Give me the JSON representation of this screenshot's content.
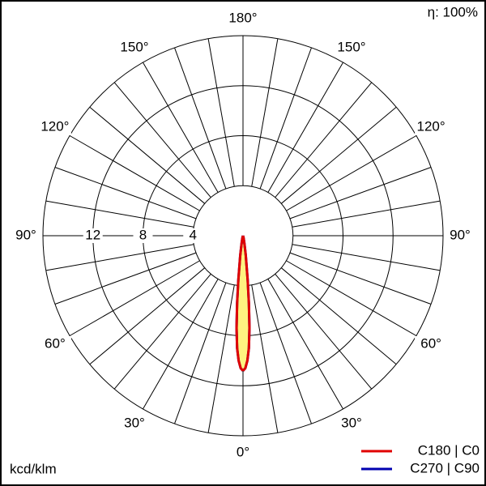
{
  "chart_data": {
    "type": "polar",
    "efficiency": "η: 100%",
    "unit": "kcd/klm",
    "rlim": [
      0,
      16
    ],
    "rticks": [
      4,
      8,
      12
    ],
    "grid_step": 10,
    "angle_ticks": [
      {
        "value": 0,
        "label": "0°"
      },
      {
        "value": 30,
        "label": "30°"
      },
      {
        "value": 60,
        "label": "60°"
      },
      {
        "value": 90,
        "label": "90°"
      },
      {
        "value": 120,
        "label": "120°"
      },
      {
        "value": 150,
        "label": "150°"
      },
      {
        "value": 180,
        "label": "180°"
      }
    ],
    "fill_color": "#fff380",
    "gamma": [
      0,
      1,
      2,
      3,
      4,
      5,
      6,
      8,
      10,
      15,
      20,
      90,
      180
    ],
    "series": [
      {
        "name": "C270 | C90",
        "color": "#0000b0",
        "values": [
          10.8,
          10.6,
          10.0,
          9.0,
          7.4,
          5.4,
          3.6,
          1.6,
          0.7,
          0.2,
          0.05,
          0,
          0
        ]
      },
      {
        "name": "C180 | C0",
        "color": "#e00000",
        "values": [
          10.8,
          10.6,
          10.0,
          9.0,
          7.4,
          5.4,
          3.6,
          1.6,
          0.7,
          0.2,
          0.05,
          0,
          0
        ]
      }
    ]
  }
}
